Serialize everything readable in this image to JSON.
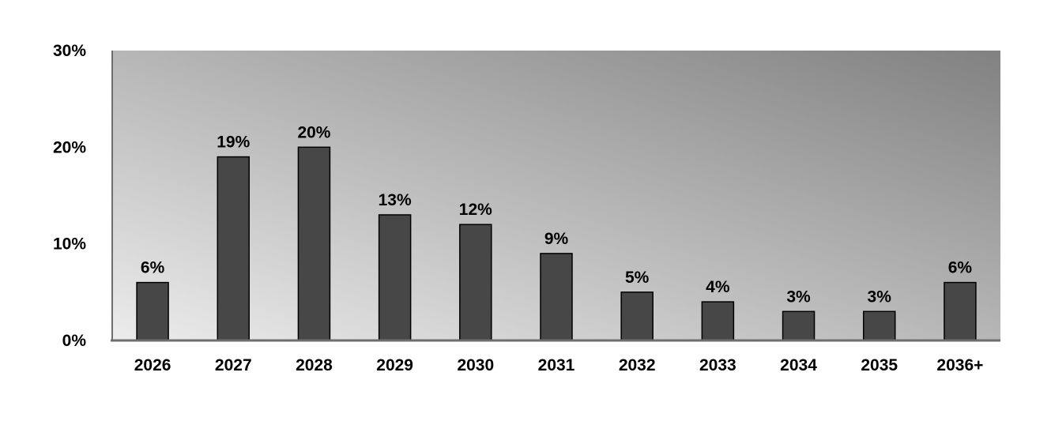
{
  "chart_data": {
    "type": "bar",
    "categories": [
      "2026",
      "2027",
      "2028",
      "2029",
      "2030",
      "2031",
      "2032",
      "2033",
      "2034",
      "2035",
      "2036+"
    ],
    "values": [
      6,
      19,
      20,
      13,
      12,
      9,
      5,
      4,
      3,
      3,
      6
    ],
    "data_labels": [
      "6%",
      "19%",
      "20%",
      "13%",
      "12%",
      "9%",
      "5%",
      "4%",
      "3%",
      "3%",
      "6%"
    ],
    "y_ticks": [
      0,
      10,
      20,
      30
    ],
    "y_tick_labels": [
      "0%",
      "10%",
      "20%",
      "30%"
    ],
    "ylim": [
      0,
      30
    ],
    "grid": false,
    "legend": "none",
    "colors": {
      "bar_fill": "#474747",
      "bar_stroke": "#000000",
      "plot_gradient_light": "#ececec",
      "plot_gradient_dark": "#818181",
      "axis": "#6e6e6e"
    }
  }
}
